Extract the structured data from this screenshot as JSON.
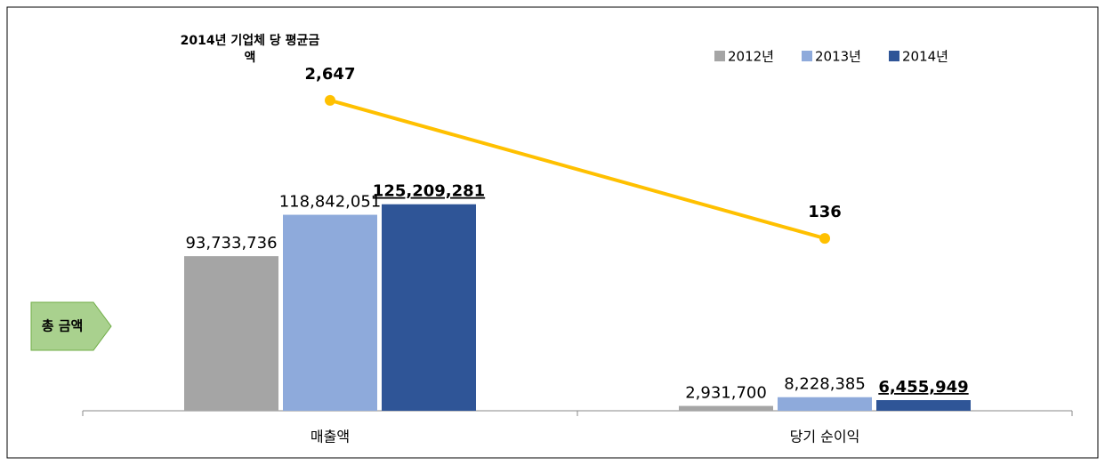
{
  "chart_data": {
    "type": "bar",
    "annotation": "총 금액",
    "categories": [
      "매출액",
      "당기 순이익"
    ],
    "series": [
      {
        "name": "2012년",
        "color": "#a5a5a5",
        "values": [
          93733736,
          2931700
        ],
        "value_labels": [
          "93,733,736",
          "2,931,700"
        ]
      },
      {
        "name": "2013년",
        "color": "#8eaadb",
        "values": [
          118842051,
          8228385
        ],
        "value_labels": [
          "118,842,051",
          "8,228,385"
        ]
      },
      {
        "name": "2014년",
        "color": "#2f5597",
        "values": [
          125209281,
          6455949
        ],
        "value_labels": [
          "125,209,281",
          "6,455,949"
        ]
      },
      {
        "name": "2014년 기업체 당 평균금액",
        "type": "line",
        "axis": "y2",
        "color": "#ffc000",
        "values": [
          2647,
          136
        ],
        "value_labels": [
          "2,647",
          "136"
        ]
      }
    ],
    "ylim": [
      0,
      200000000
    ],
    "y2lim": [
      -3000,
      3000
    ],
    "legend": "top-right"
  }
}
